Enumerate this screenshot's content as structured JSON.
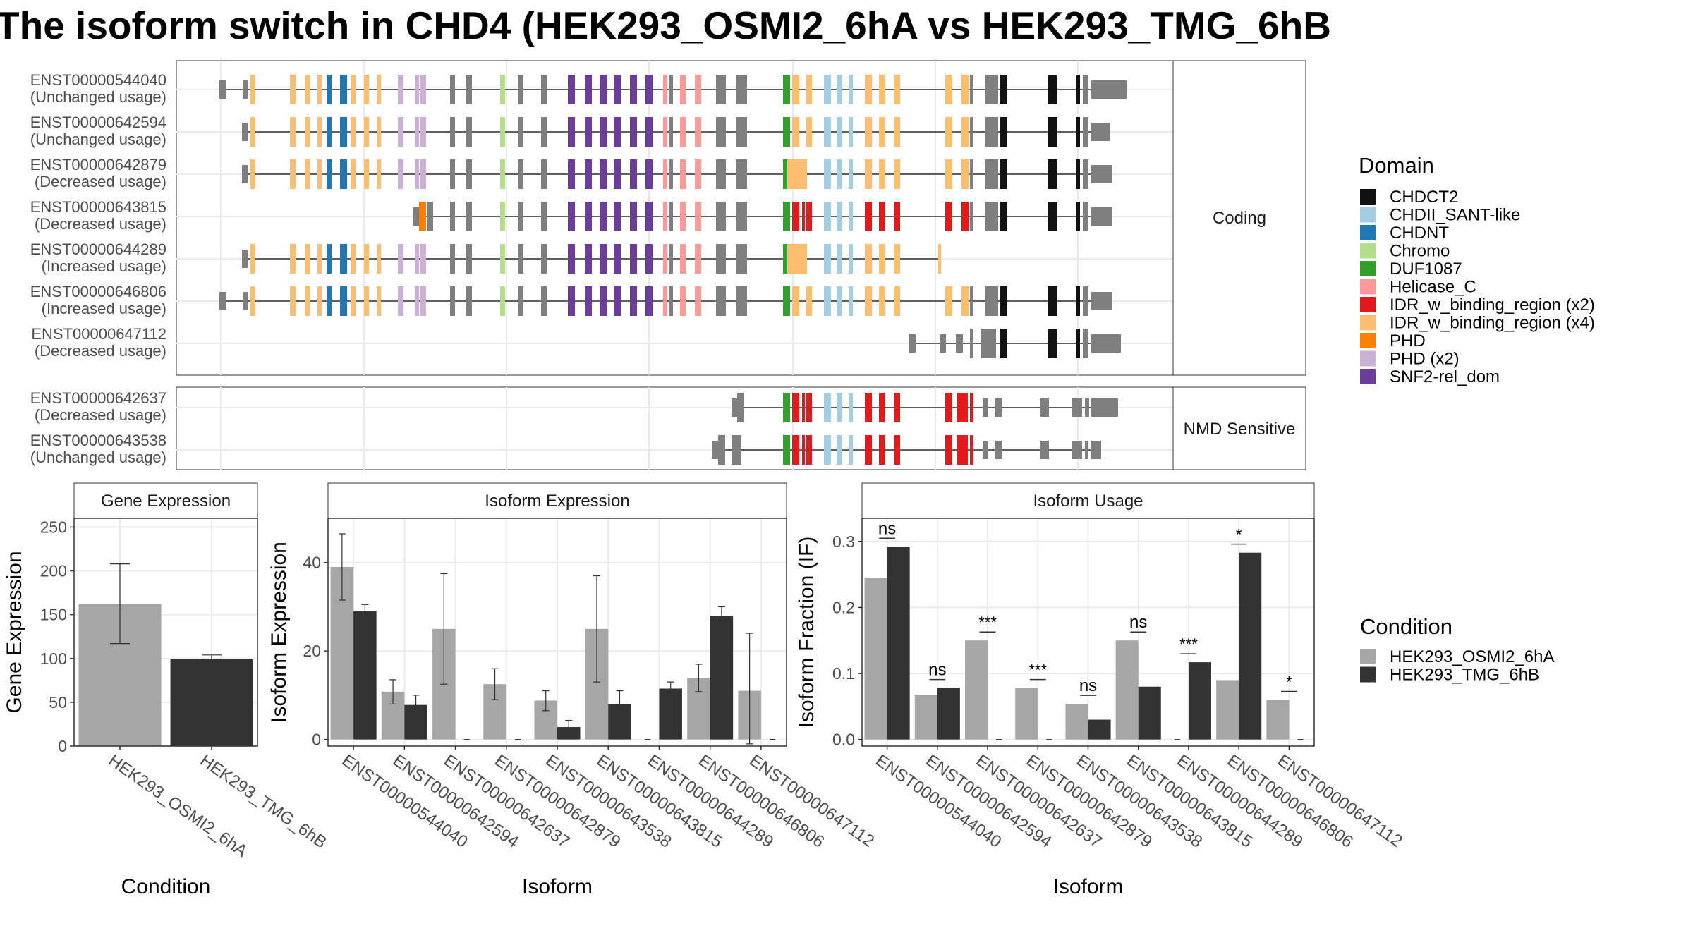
{
  "title": "The isoform switch in CHD4 (HEK293_OSMI2_6hA vs HEK293_TMG_6hB",
  "transcript_panel": {
    "coding_label": "Coding",
    "nmd_label": "NMD Sensitive",
    "coding_isoforms": [
      {
        "id": "ENST00000544040",
        "usage": "(Unchanged usage)"
      },
      {
        "id": "ENST00000642594",
        "usage": "(Unchanged usage)"
      },
      {
        "id": "ENST00000642879",
        "usage": "(Decreased usage)"
      },
      {
        "id": "ENST00000643815",
        "usage": "(Decreased usage)"
      },
      {
        "id": "ENST00000644289",
        "usage": "(Increased usage)"
      },
      {
        "id": "ENST00000646806",
        "usage": "(Increased usage)"
      },
      {
        "id": "ENST00000647112",
        "usage": "(Decreased usage)"
      }
    ],
    "nmd_isoforms": [
      {
        "id": "ENST00000642637",
        "usage": "(Decreased usage)"
      },
      {
        "id": "ENST00000643538",
        "usage": "(Unchanged usage)"
      }
    ]
  },
  "domain_legend": {
    "title": "Domain",
    "items": [
      {
        "label": "CHDCT2",
        "color": "#111111"
      },
      {
        "label": "CHDII_SANT-like",
        "color": "#a6cee3"
      },
      {
        "label": "CHDNT",
        "color": "#1f78b4"
      },
      {
        "label": "Chromo",
        "color": "#b2df8a"
      },
      {
        "label": "DUF1087",
        "color": "#33a02c"
      },
      {
        "label": "Helicase_C",
        "color": "#fb9a99"
      },
      {
        "label": "IDR_w_binding_region (x2)",
        "color": "#e31a1c"
      },
      {
        "label": "IDR_w_binding_region (x4)",
        "color": "#fdbf6f"
      },
      {
        "label": "PHD",
        "color": "#ff7f00"
      },
      {
        "label": "PHD (x2)",
        "color": "#cab2d6"
      },
      {
        "label": "SNF2-rel_dom",
        "color": "#6a3d9a"
      }
    ]
  },
  "condition_legend": {
    "title": "Condition",
    "items": [
      {
        "label": "HEK293_OSMI2_6hA",
        "color": "#a6a6a6"
      },
      {
        "label": "HEK293_TMG_6hB",
        "color": "#333333"
      }
    ]
  },
  "chart_data": [
    {
      "type": "bar",
      "title": "Gene Expression",
      "xlabel": "Condition",
      "ylabel": "Gene Expression",
      "ylim": [
        0,
        260
      ],
      "yticks": [
        0,
        50,
        100,
        150,
        200,
        250
      ],
      "categories": [
        "HEK293_OSMI2_6hA",
        "HEK293_TMG_6hB"
      ],
      "values": [
        162,
        99
      ],
      "errors": [
        [
          117,
          208
        ],
        [
          95,
          104
        ]
      ],
      "colors": [
        "#a6a6a6",
        "#333333"
      ]
    },
    {
      "type": "bar",
      "title": "Isoform Expression",
      "xlabel": "Isoform",
      "ylabel": "Isoform Expression",
      "ylim": [
        -1.5,
        50
      ],
      "yticks": [
        0,
        20,
        40
      ],
      "categories": [
        "ENST00000544040",
        "ENST00000642594",
        "ENST00000642637",
        "ENST00000642879",
        "ENST00000643538",
        "ENST00000643815",
        "ENST00000644289",
        "ENST00000646806",
        "ENST00000647112"
      ],
      "series": [
        {
          "name": "HEK293_OSMI2_6hA",
          "color": "#a6a6a6",
          "values": [
            39,
            10.8,
            25,
            12.5,
            8.8,
            25,
            0,
            13.8,
            11
          ],
          "errors": [
            [
              31.5,
              46.5
            ],
            [
              8,
              13.5
            ],
            [
              12.5,
              37.5
            ],
            [
              9,
              16
            ],
            [
              6.5,
              11
            ],
            [
              13,
              37
            ],
            null,
            [
              10.8,
              17
            ],
            [
              -1,
              24
            ]
          ]
        },
        {
          "name": "HEK293_TMG_6hB",
          "color": "#333333",
          "values": [
            29,
            7.8,
            0,
            0,
            2.8,
            8,
            11.5,
            28,
            0
          ],
          "errors": [
            [
              27.5,
              30.5
            ],
            [
              5.5,
              10
            ],
            null,
            null,
            [
              1.5,
              4.3
            ],
            [
              5,
              11
            ],
            [
              10,
              13
            ],
            [
              26,
              30
            ],
            null
          ]
        }
      ]
    },
    {
      "type": "bar",
      "title": "Isoform Usage",
      "xlabel": "Isoform",
      "ylabel": "Isoform Fraction (IF)",
      "ylim": [
        -0.01,
        0.335
      ],
      "yticks": [
        0.0,
        0.1,
        0.2,
        0.3
      ],
      "ytick_labels": [
        "0.0",
        "0.1",
        "0.2",
        "0.3"
      ],
      "categories": [
        "ENST00000544040",
        "ENST00000642594",
        "ENST00000642637",
        "ENST00000642879",
        "ENST00000643538",
        "ENST00000643815",
        "ENST00000644289",
        "ENST00000646806",
        "ENST00000647112"
      ],
      "series": [
        {
          "name": "HEK293_OSMI2_6hA",
          "color": "#a6a6a6",
          "values": [
            0.245,
            0.067,
            0.15,
            0.078,
            0.054,
            0.15,
            0,
            0.09,
            0.06
          ]
        },
        {
          "name": "HEK293_TMG_6hB",
          "color": "#333333",
          "values": [
            0.292,
            0.078,
            0,
            0,
            0.03,
            0.08,
            0.117,
            0.283,
            0
          ]
        }
      ],
      "significance": [
        "ns",
        "ns",
        "***",
        "***",
        "ns",
        "ns",
        "***",
        "*",
        "*"
      ]
    }
  ]
}
